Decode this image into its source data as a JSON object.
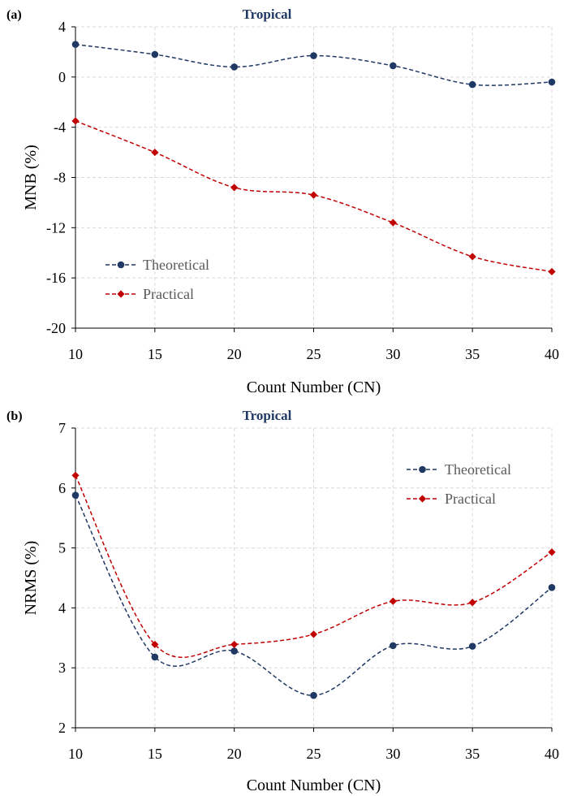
{
  "colors": {
    "theoretical": "#1f3864",
    "practical": "#c00000",
    "title": "#1f3864",
    "grid": "#d9d9d9",
    "axis": "#000000",
    "legend_text": "#595959"
  },
  "chart_data": [
    {
      "type": "line",
      "panel_label": "(a)",
      "title": "Tropical",
      "xlabel": "Count Number (CN)",
      "ylabel": "MNB (%)",
      "x": [
        10,
        15,
        20,
        25,
        30,
        35,
        40
      ],
      "xlim": [
        10,
        40
      ],
      "ylim": [
        -20,
        4
      ],
      "xticks": [
        "10",
        "15",
        "20",
        "25",
        "30",
        "35",
        "40"
      ],
      "yticks": [
        "-20",
        "-16",
        "-12",
        "-8",
        "-4",
        "0",
        "4"
      ],
      "grid": true,
      "legend_position": "bottom-left",
      "series": [
        {
          "name": "Theoretical",
          "marker": "circle",
          "color_key": "theoretical",
          "values": [
            2.6,
            1.8,
            0.8,
            1.7,
            0.9,
            -0.6,
            -0.4
          ]
        },
        {
          "name": "Practical",
          "marker": "diamond",
          "color_key": "practical",
          "values": [
            -3.5,
            -6.0,
            -8.8,
            -9.4,
            -11.6,
            -14.3,
            -15.5
          ]
        }
      ]
    },
    {
      "type": "line",
      "panel_label": "(b)",
      "title": "Tropical",
      "xlabel": "Count Number (CN)",
      "ylabel": "NRMS (%)",
      "x": [
        10,
        15,
        20,
        25,
        30,
        35,
        40
      ],
      "xlim": [
        10,
        40
      ],
      "ylim": [
        2,
        7
      ],
      "xticks": [
        "10",
        "15",
        "20",
        "25",
        "30",
        "35",
        "40"
      ],
      "yticks": [
        "2",
        "3",
        "4",
        "5",
        "6",
        "7"
      ],
      "grid": true,
      "legend_position": "top-right",
      "series": [
        {
          "name": "Theoretical",
          "marker": "circle",
          "color_key": "theoretical",
          "values": [
            5.88,
            3.18,
            3.28,
            2.54,
            3.37,
            3.36,
            4.34
          ]
        },
        {
          "name": "Practical",
          "marker": "diamond",
          "color_key": "practical",
          "values": [
            6.21,
            3.39,
            3.39,
            3.56,
            4.11,
            4.09,
            4.93
          ]
        }
      ]
    }
  ]
}
